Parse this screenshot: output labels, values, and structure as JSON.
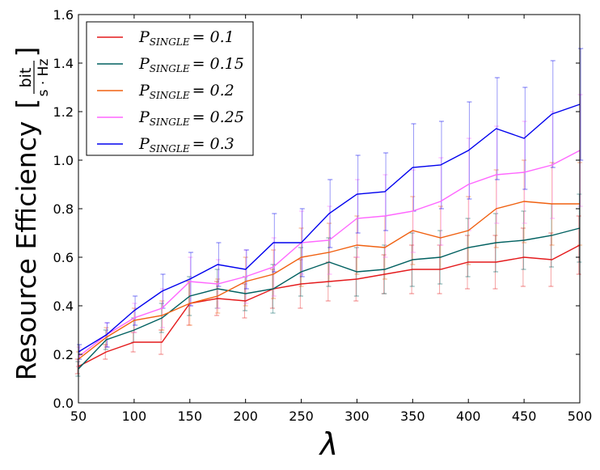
{
  "chart_data": {
    "type": "line",
    "xlabel": "λ",
    "ylabel": "Resource Efficiency",
    "ylabel_unit_num": "bit",
    "ylabel_unit_den": "s · Hz",
    "xlim": [
      50,
      500
    ],
    "ylim": [
      0,
      1.6
    ],
    "xticks": [
      50,
      100,
      150,
      200,
      250,
      300,
      350,
      400,
      450,
      500
    ],
    "yticks": [
      0.0,
      0.2,
      0.4,
      0.6,
      0.8,
      1.0,
      1.2,
      1.4,
      1.6
    ],
    "ytick_labels": [
      "0.0",
      "0.2",
      "0.4",
      "0.6",
      "0.8",
      "1.0",
      "1.2",
      "1.4",
      "1.6"
    ],
    "legend_position": "top-left",
    "grid": false,
    "x": [
      50,
      75,
      100,
      125,
      150,
      175,
      200,
      225,
      250,
      275,
      300,
      325,
      350,
      375,
      400,
      425,
      450,
      475,
      500
    ],
    "series": [
      {
        "name_main": "P",
        "name_sub": "SINGLE",
        "name_value": "= 0.1",
        "color": "#e41a1c",
        "values": [
          0.15,
          0.21,
          0.25,
          0.25,
          0.41,
          0.43,
          0.42,
          0.47,
          0.49,
          0.5,
          0.51,
          0.53,
          0.55,
          0.55,
          0.58,
          0.58,
          0.6,
          0.59,
          0.65
        ],
        "errors": [
          0.03,
          0.03,
          0.04,
          0.05,
          0.09,
          0.07,
          0.07,
          0.08,
          0.1,
          0.08,
          0.09,
          0.08,
          0.1,
          0.1,
          0.11,
          0.11,
          0.12,
          0.11,
          0.12
        ]
      },
      {
        "name_main": "P",
        "name_sub": "SINGLE",
        "name_value": "= 0.15",
        "color": "#006060",
        "values": [
          0.14,
          0.26,
          0.3,
          0.35,
          0.44,
          0.47,
          0.45,
          0.47,
          0.54,
          0.58,
          0.54,
          0.55,
          0.59,
          0.6,
          0.64,
          0.66,
          0.67,
          0.69,
          0.72
        ],
        "errors": [
          0.03,
          0.04,
          0.05,
          0.06,
          0.08,
          0.08,
          0.07,
          0.1,
          0.1,
          0.1,
          0.1,
          0.1,
          0.11,
          0.11,
          0.12,
          0.12,
          0.12,
          0.13,
          0.14
        ]
      },
      {
        "name_main": "P",
        "name_sub": "SINGLE",
        "name_value": "= 0.2",
        "color": "#f06010",
        "values": [
          0.18,
          0.27,
          0.34,
          0.36,
          0.41,
          0.44,
          0.5,
          0.53,
          0.6,
          0.62,
          0.65,
          0.64,
          0.71,
          0.68,
          0.71,
          0.8,
          0.83,
          0.82,
          0.82
        ],
        "errors": [
          0.03,
          0.04,
          0.05,
          0.06,
          0.09,
          0.07,
          0.1,
          0.1,
          0.12,
          0.12,
          0.12,
          0.13,
          0.14,
          0.13,
          0.14,
          0.16,
          0.17,
          0.17,
          0.17
        ]
      },
      {
        "name_main": "P",
        "name_sub": "SINGLE",
        "name_value": "= 0.25",
        "color": "#ff66ff",
        "values": [
          0.19,
          0.28,
          0.35,
          0.39,
          0.5,
          0.49,
          0.52,
          0.56,
          0.66,
          0.67,
          0.76,
          0.77,
          0.79,
          0.83,
          0.9,
          0.94,
          0.95,
          0.98,
          1.04
        ],
        "errors": [
          0.04,
          0.05,
          0.06,
          0.08,
          0.1,
          0.1,
          0.11,
          0.12,
          0.13,
          0.14,
          0.16,
          0.17,
          0.17,
          0.18,
          0.19,
          0.2,
          0.21,
          0.22,
          0.23
        ]
      },
      {
        "name_main": "P",
        "name_sub": "SINGLE",
        "name_value": "= 0.3",
        "color": "#0000ee",
        "values": [
          0.21,
          0.28,
          0.38,
          0.46,
          0.51,
          0.57,
          0.55,
          0.66,
          0.66,
          0.78,
          0.86,
          0.87,
          0.97,
          0.98,
          1.04,
          1.13,
          1.09,
          1.19,
          1.23
        ],
        "errors": [
          0.03,
          0.05,
          0.06,
          0.07,
          0.11,
          0.09,
          0.08,
          0.12,
          0.14,
          0.14,
          0.16,
          0.16,
          0.18,
          0.18,
          0.2,
          0.21,
          0.21,
          0.22,
          0.23
        ]
      }
    ]
  }
}
